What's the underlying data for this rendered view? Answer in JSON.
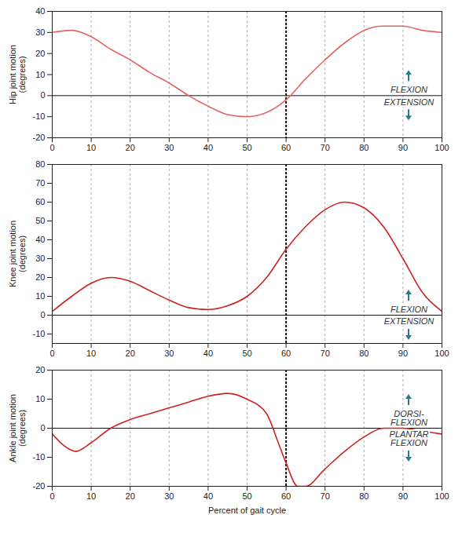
{
  "chart_data": [
    {
      "type": "line",
      "ylabel": "Hip joint motion\n(degrees)",
      "x": [
        0,
        5,
        10,
        15,
        20,
        25,
        30,
        35,
        40,
        45,
        50,
        55,
        60,
        65,
        70,
        75,
        80,
        85,
        90,
        95,
        100
      ],
      "series": [
        {
          "color": "#e06666",
          "values": [
            30,
            31,
            28,
            22,
            17,
            11,
            6,
            0,
            -5,
            -9,
            -10,
            -8,
            -2,
            8,
            17,
            25,
            31,
            33,
            33,
            31,
            30
          ]
        }
      ],
      "xlim": [
        0,
        100
      ],
      "xticks": [
        0,
        10,
        20,
        30,
        40,
        50,
        60,
        70,
        80,
        90,
        100
      ],
      "ylim": [
        -20,
        40
      ],
      "yticks": [
        -20,
        -10,
        0,
        10,
        20,
        30,
        40
      ],
      "grid": true,
      "vline": 60,
      "annotations": [
        "FLEXION",
        "EXTENSION"
      ]
    },
    {
      "type": "line",
      "ylabel": "Knee joint motion\n(degrees)",
      "x": [
        0,
        5,
        10,
        15,
        20,
        25,
        30,
        35,
        40,
        45,
        50,
        55,
        60,
        65,
        70,
        75,
        80,
        85,
        90,
        95,
        100
      ],
      "series": [
        {
          "color": "#cc2222",
          "values": [
            2,
            10,
            17,
            20,
            18,
            13,
            8,
            4,
            3,
            5,
            10,
            20,
            35,
            47,
            56,
            60,
            57,
            47,
            30,
            12,
            2
          ]
        }
      ],
      "xlim": [
        0,
        100
      ],
      "xticks": [
        0,
        10,
        20,
        30,
        40,
        50,
        60,
        70,
        80,
        90,
        100
      ],
      "ylim": [
        -15,
        80
      ],
      "yticks": [
        -10,
        0,
        10,
        20,
        30,
        40,
        50,
        60,
        70,
        80
      ],
      "grid": true,
      "vline": 60,
      "annotations": [
        "FLEXION",
        "EXTENSION"
      ]
    },
    {
      "type": "line",
      "ylabel": "Ankle joint motion\n(degrees)",
      "xlabel": "Percent of gait cycle",
      "x": [
        0,
        3,
        6,
        10,
        15,
        20,
        25,
        30,
        35,
        40,
        45,
        50,
        55,
        58,
        60,
        63,
        65,
        70,
        75,
        80,
        85,
        90,
        95,
        100
      ],
      "series": [
        {
          "color": "#cc2222",
          "values": [
            -2,
            -6,
            -8,
            -5,
            0,
            3,
            5,
            7,
            9,
            11,
            12,
            10,
            5,
            -5,
            -12,
            -20,
            -20,
            -14,
            -8,
            -3,
            0,
            0,
            -1,
            -2
          ]
        }
      ],
      "xlim": [
        0,
        100
      ],
      "xticks": [
        0,
        10,
        20,
        30,
        40,
        50,
        60,
        70,
        80,
        90,
        100
      ],
      "ylim": [
        -20,
        20
      ],
      "yticks": [
        -20,
        -10,
        0,
        10,
        20
      ],
      "grid": true,
      "vline": 60,
      "annotations": [
        "DORSI-\nFLEXION",
        "PLANTAR\nFLEXION"
      ]
    }
  ]
}
